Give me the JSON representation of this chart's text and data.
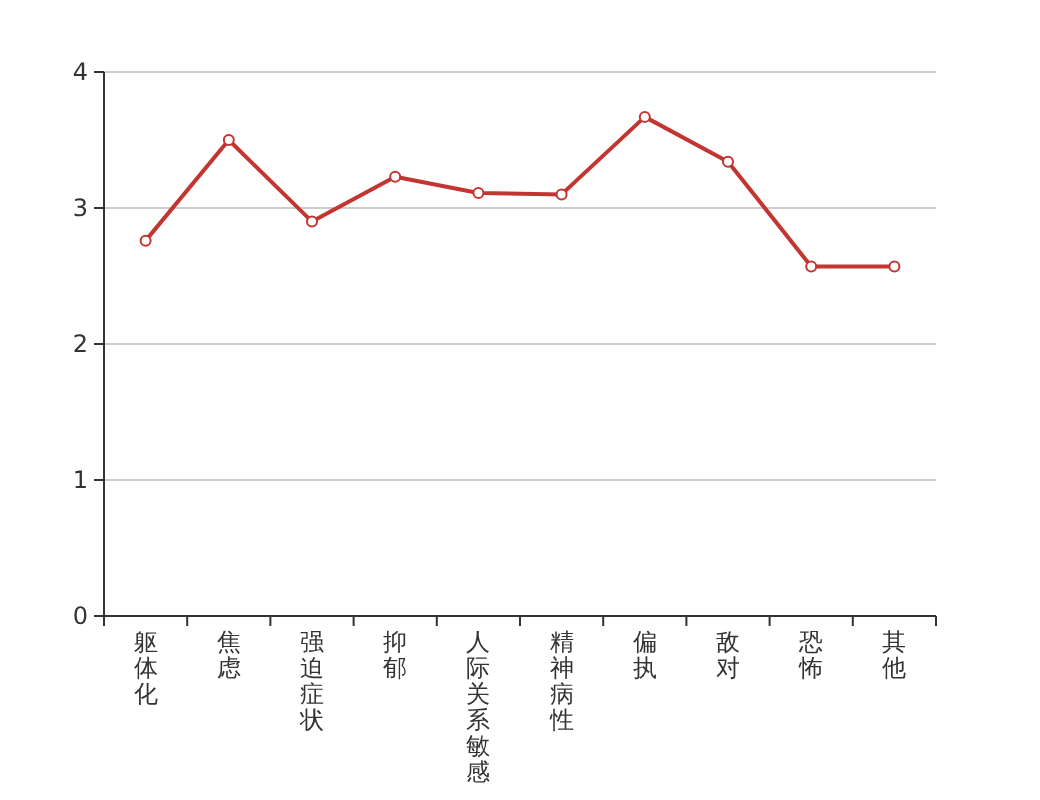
{
  "chart_data": {
    "type": "line",
    "categories": [
      "躯体化",
      "焦虑",
      "强迫症状",
      "抑郁",
      "人际关系敏感",
      "精神病性",
      "偏执",
      "敌对",
      "恐怖",
      "其他"
    ],
    "series": [
      {
        "color": "#c23531",
        "values": [
          2.76,
          3.5,
          2.9,
          3.23,
          3.11,
          3.1,
          3.67,
          3.34,
          2.57,
          2.57
        ]
      }
    ],
    "ylim": [
      0,
      4
    ],
    "yticks": [
      0,
      1,
      2,
      3,
      4
    ],
    "grid": "y",
    "marker": "circle",
    "line_style": "solid"
  }
}
